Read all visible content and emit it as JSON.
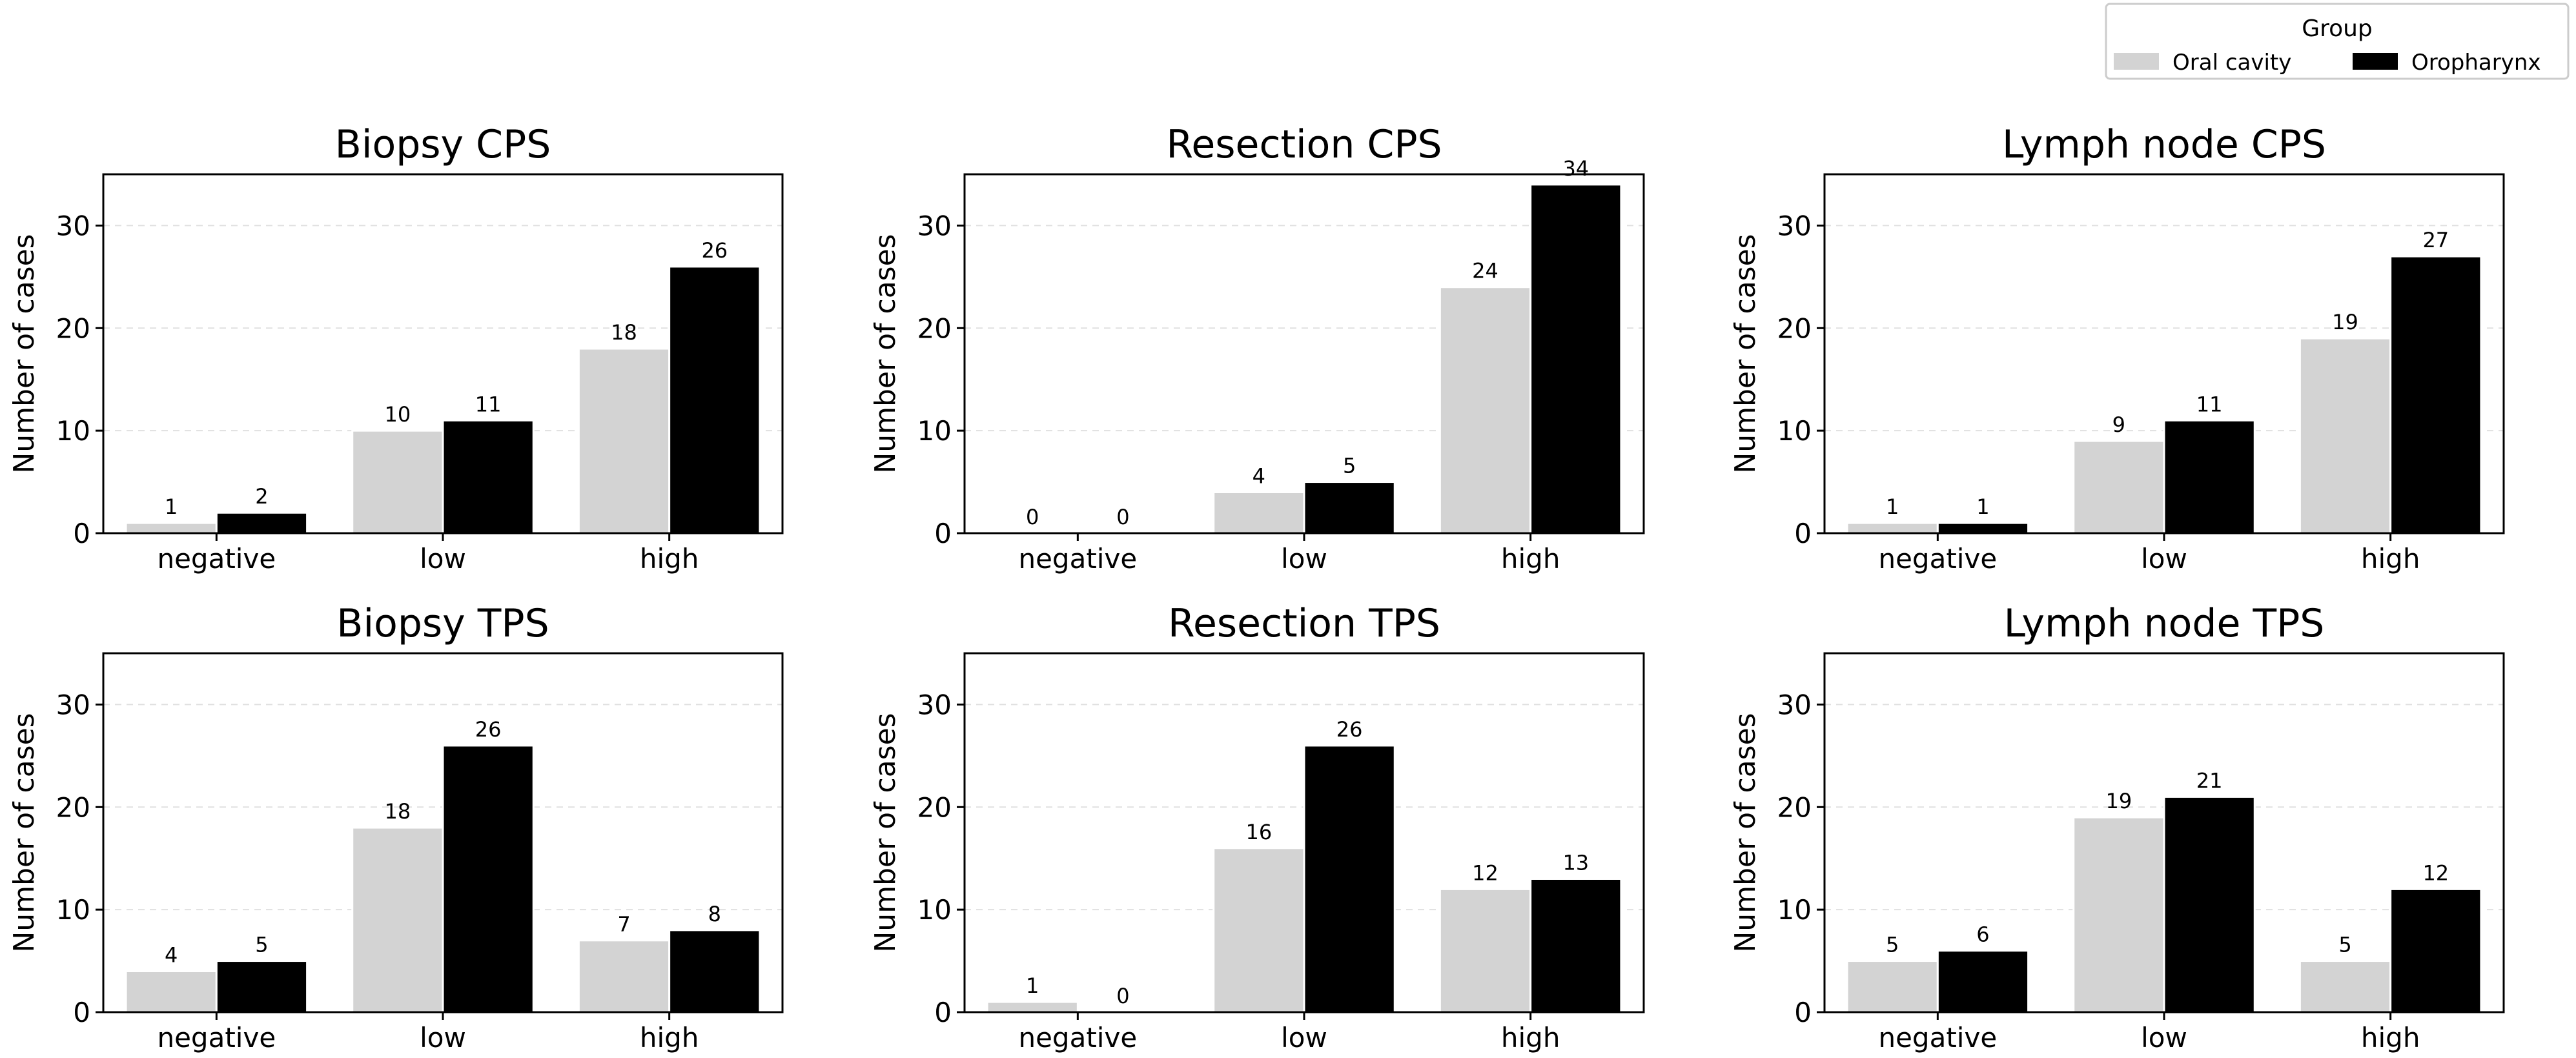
{
  "legend": {
    "title": "Group",
    "placement": "top-right",
    "entries": [
      {
        "name": "Oral cavity",
        "color": "#d3d3d3"
      },
      {
        "name": "Oropharynx",
        "color": "#000000"
      }
    ]
  },
  "chart_data": [
    {
      "type": "bar",
      "title": "Biopsy CPS",
      "categories": [
        "negative",
        "low",
        "high"
      ],
      "series": [
        {
          "name": "Oral cavity",
          "values": [
            1,
            10,
            18
          ]
        },
        {
          "name": "Oropharynx",
          "values": [
            2,
            11,
            26
          ]
        }
      ],
      "xlabel": "",
      "ylabel": "Number of cases",
      "ylim": [
        0,
        35
      ],
      "yticks": [
        0,
        10,
        20,
        30
      ],
      "grid": "y-dashed"
    },
    {
      "type": "bar",
      "title": "Resection CPS",
      "categories": [
        "negative",
        "low",
        "high"
      ],
      "series": [
        {
          "name": "Oral cavity",
          "values": [
            0,
            4,
            24
          ]
        },
        {
          "name": "Oropharynx",
          "values": [
            0,
            5,
            34
          ]
        }
      ],
      "xlabel": "",
      "ylabel": "Number of cases",
      "ylim": [
        0,
        35
      ],
      "yticks": [
        0,
        10,
        20,
        30
      ],
      "grid": "y-dashed"
    },
    {
      "type": "bar",
      "title": "Lymph node CPS",
      "categories": [
        "negative",
        "low",
        "high"
      ],
      "series": [
        {
          "name": "Oral cavity",
          "values": [
            1,
            9,
            19
          ]
        },
        {
          "name": "Oropharynx",
          "values": [
            1,
            11,
            27
          ]
        }
      ],
      "xlabel": "",
      "ylabel": "Number of cases",
      "ylim": [
        0,
        35
      ],
      "yticks": [
        0,
        10,
        20,
        30
      ],
      "grid": "y-dashed"
    },
    {
      "type": "bar",
      "title": "Biopsy TPS",
      "categories": [
        "negative",
        "low",
        "high"
      ],
      "series": [
        {
          "name": "Oral cavity",
          "values": [
            4,
            18,
            7
          ]
        },
        {
          "name": "Oropharynx",
          "values": [
            5,
            26,
            8
          ]
        }
      ],
      "xlabel": "",
      "ylabel": "Number of cases",
      "ylim": [
        0,
        35
      ],
      "yticks": [
        0,
        10,
        20,
        30
      ],
      "grid": "y-dashed"
    },
    {
      "type": "bar",
      "title": "Resection TPS",
      "categories": [
        "negative",
        "low",
        "high"
      ],
      "series": [
        {
          "name": "Oral cavity",
          "values": [
            1,
            16,
            12
          ]
        },
        {
          "name": "Oropharynx",
          "values": [
            0,
            26,
            13
          ]
        }
      ],
      "xlabel": "",
      "ylabel": "Number of cases",
      "ylim": [
        0,
        35
      ],
      "yticks": [
        0,
        10,
        20,
        30
      ],
      "grid": "y-dashed"
    },
    {
      "type": "bar",
      "title": "Lymph node TPS",
      "categories": [
        "negative",
        "low",
        "high"
      ],
      "series": [
        {
          "name": "Oral cavity",
          "values": [
            5,
            19,
            5
          ]
        },
        {
          "name": "Oropharynx",
          "values": [
            6,
            21,
            12
          ]
        }
      ],
      "xlabel": "",
      "ylabel": "Number of cases",
      "ylim": [
        0,
        35
      ],
      "yticks": [
        0,
        10,
        20,
        30
      ],
      "grid": "y-dashed"
    }
  ]
}
